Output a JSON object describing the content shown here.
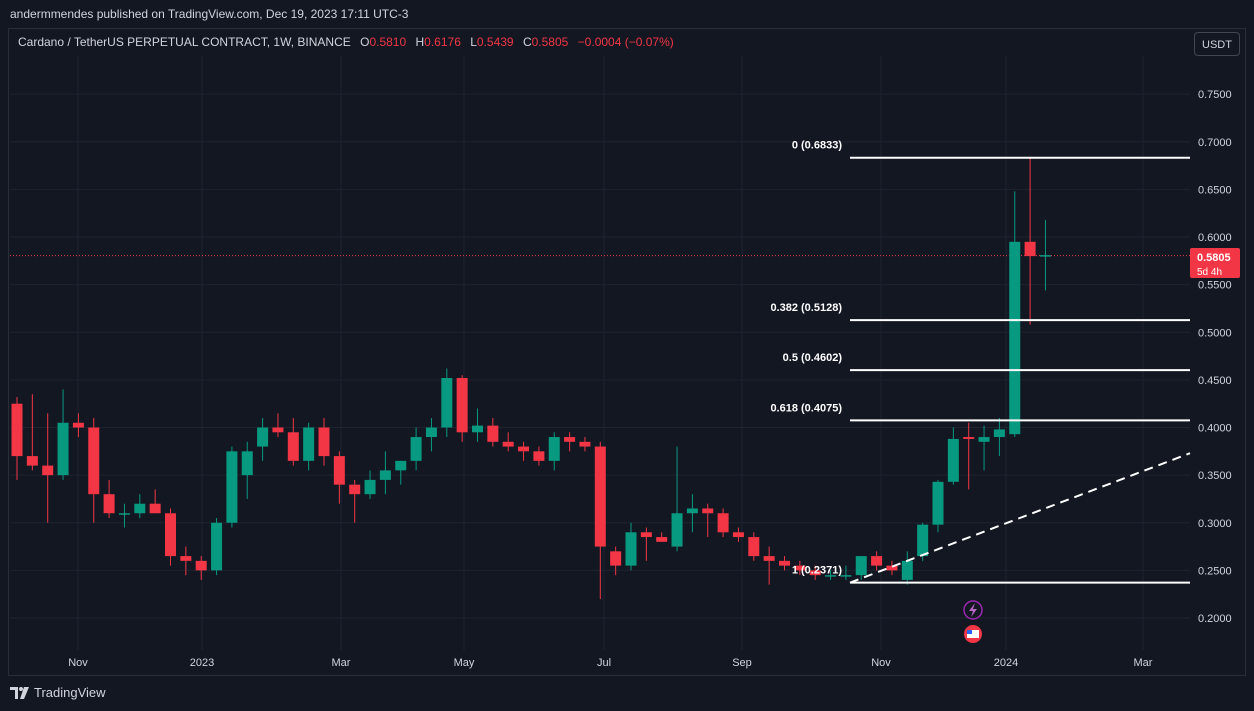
{
  "header": {
    "published": "andermmendes published on TradingView.com, Dec 19, 2023 17:11 UTC-3"
  },
  "legend": {
    "symbol": "Cardano / TetherUS PERPETUAL CONTRACT, 1W, BINANCE",
    "open_label": "O",
    "open": "0.5810",
    "high_label": "H",
    "high": "0.6176",
    "low_label": "L",
    "low": "0.5439",
    "close_label": "C",
    "close": "0.5805",
    "change": "−0.0004 (−0.07%)"
  },
  "currency_button": "USDT",
  "footer": {
    "brand": "TradingView"
  },
  "colors": {
    "up": "#089981",
    "down": "#f23645",
    "background": "#131722",
    "text": "#d1d4dc"
  },
  "icons": [
    "lightning-event-icon",
    "us-flag-event-icon"
  ],
  "chart_data": {
    "type": "candlestick",
    "interval": "1W",
    "ylim": [
      0.15,
      0.8
    ],
    "yticks": [
      "0.7500",
      "0.7000",
      "0.6500",
      "0.6000",
      "0.5500",
      "0.5000",
      "0.4500",
      "0.4000",
      "0.3500",
      "0.3000",
      "0.2500",
      "0.2000"
    ],
    "xticks": [
      "Nov",
      "2023",
      "Mar",
      "May",
      "Jul",
      "Sep",
      "Nov",
      "2024",
      "Mar"
    ],
    "candles": [
      [
        0.425,
        0.432,
        0.345,
        0.37
      ],
      [
        0.37,
        0.435,
        0.355,
        0.36
      ],
      [
        0.36,
        0.415,
        0.3,
        0.35
      ],
      [
        0.35,
        0.44,
        0.345,
        0.405
      ],
      [
        0.405,
        0.415,
        0.39,
        0.4
      ],
      [
        0.4,
        0.41,
        0.3,
        0.33
      ],
      [
        0.33,
        0.345,
        0.305,
        0.31
      ],
      [
        0.31,
        0.32,
        0.295,
        0.31
      ],
      [
        0.31,
        0.33,
        0.305,
        0.32
      ],
      [
        0.32,
        0.335,
        0.31,
        0.31
      ],
      [
        0.31,
        0.315,
        0.255,
        0.265
      ],
      [
        0.265,
        0.275,
        0.245,
        0.26
      ],
      [
        0.26,
        0.265,
        0.24,
        0.25
      ],
      [
        0.25,
        0.305,
        0.245,
        0.3
      ],
      [
        0.3,
        0.38,
        0.295,
        0.375
      ],
      [
        0.35,
        0.385,
        0.325,
        0.375
      ],
      [
        0.38,
        0.41,
        0.365,
        0.4
      ],
      [
        0.4,
        0.415,
        0.39,
        0.395
      ],
      [
        0.395,
        0.41,
        0.36,
        0.365
      ],
      [
        0.365,
        0.405,
        0.355,
        0.4
      ],
      [
        0.4,
        0.41,
        0.36,
        0.37
      ],
      [
        0.37,
        0.375,
        0.32,
        0.34
      ],
      [
        0.34,
        0.345,
        0.3,
        0.33
      ],
      [
        0.33,
        0.355,
        0.325,
        0.345
      ],
      [
        0.345,
        0.375,
        0.33,
        0.355
      ],
      [
        0.355,
        0.365,
        0.34,
        0.365
      ],
      [
        0.365,
        0.4,
        0.355,
        0.39
      ],
      [
        0.39,
        0.41,
        0.375,
        0.4
      ],
      [
        0.4,
        0.462,
        0.39,
        0.452
      ],
      [
        0.452,
        0.455,
        0.385,
        0.395
      ],
      [
        0.395,
        0.42,
        0.385,
        0.402
      ],
      [
        0.402,
        0.41,
        0.38,
        0.385
      ],
      [
        0.385,
        0.395,
        0.375,
        0.38
      ],
      [
        0.38,
        0.385,
        0.365,
        0.375
      ],
      [
        0.375,
        0.38,
        0.36,
        0.365
      ],
      [
        0.365,
        0.395,
        0.355,
        0.39
      ],
      [
        0.39,
        0.395,
        0.375,
        0.385
      ],
      [
        0.385,
        0.39,
        0.375,
        0.38
      ],
      [
        0.38,
        0.385,
        0.22,
        0.275
      ],
      [
        0.27,
        0.275,
        0.245,
        0.255
      ],
      [
        0.255,
        0.3,
        0.25,
        0.29
      ],
      [
        0.29,
        0.295,
        0.26,
        0.285
      ],
      [
        0.285,
        0.29,
        0.28,
        0.28
      ],
      [
        0.275,
        0.38,
        0.27,
        0.31
      ],
      [
        0.31,
        0.33,
        0.29,
        0.315
      ],
      [
        0.315,
        0.32,
        0.285,
        0.31
      ],
      [
        0.31,
        0.315,
        0.285,
        0.29
      ],
      [
        0.29,
        0.295,
        0.28,
        0.285
      ],
      [
        0.285,
        0.29,
        0.26,
        0.265
      ],
      [
        0.265,
        0.275,
        0.235,
        0.26
      ],
      [
        0.26,
        0.265,
        0.25,
        0.255
      ],
      [
        0.255,
        0.26,
        0.245,
        0.25
      ],
      [
        0.25,
        0.255,
        0.24,
        0.245
      ],
      [
        0.245,
        0.25,
        0.24,
        0.245
      ],
      [
        0.245,
        0.255,
        0.24,
        0.245
      ],
      [
        0.245,
        0.265,
        0.24,
        0.265
      ],
      [
        0.265,
        0.27,
        0.25,
        0.255
      ],
      [
        0.255,
        0.26,
        0.245,
        0.25
      ],
      [
        0.24,
        0.27,
        0.235,
        0.26
      ],
      [
        0.265,
        0.3,
        0.26,
        0.298
      ],
      [
        0.298,
        0.345,
        0.29,
        0.343
      ],
      [
        0.343,
        0.4,
        0.34,
        0.388
      ],
      [
        0.39,
        0.405,
        0.335,
        0.388
      ],
      [
        0.385,
        0.402,
        0.355,
        0.39
      ],
      [
        0.39,
        0.41,
        0.37,
        0.398
      ],
      [
        0.393,
        0.648,
        0.39,
        0.595
      ],
      [
        0.595,
        0.683,
        0.508,
        0.58
      ],
      [
        0.581,
        0.618,
        0.544,
        0.581
      ]
    ],
    "last_price": "0.5805",
    "countdown": "5d 4h",
    "fibonacci": [
      {
        "label": "0 (0.6833)",
        "value": 0.6833
      },
      {
        "label": "0.382 (0.5128)",
        "value": 0.5128
      },
      {
        "label": "0.5 (0.4602)",
        "value": 0.4602
      },
      {
        "label": "0.618 (0.4075)",
        "value": 0.4075
      },
      {
        "label": "1 (0.2371)",
        "value": 0.2371
      }
    ],
    "trendline": {
      "from": 0.2371,
      "to": 0.373,
      "style": "dashed"
    }
  }
}
